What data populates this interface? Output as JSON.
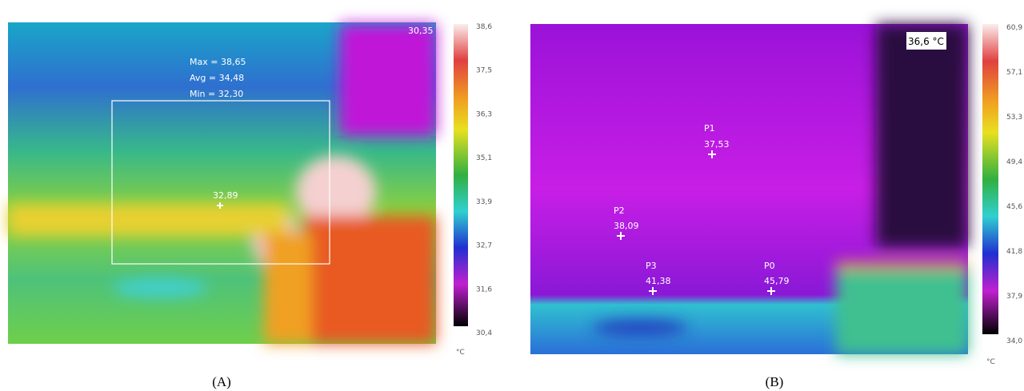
{
  "panel_a": {
    "corner_reading": "30,35",
    "stats": [
      "Max = 38,65",
      "Avg = 34,48",
      "Min = 32,30"
    ],
    "point_reading": "32,89",
    "scale_ticks": [
      "38,6",
      "37,5",
      "36,3",
      "35,1",
      "33,9",
      "32,7",
      "31,6",
      "30,4"
    ],
    "unit": "°C",
    "caption": "(A)"
  },
  "panel_b": {
    "spot_reading": "36,6 °C",
    "points": [
      {
        "label": "P1",
        "reading": "37,53"
      },
      {
        "label": "P2",
        "reading": "38,09"
      },
      {
        "label": "P3",
        "reading": "41,38"
      },
      {
        "label": "P0",
        "reading": "45,79"
      }
    ],
    "scale_ticks": [
      "60,9",
      "57,1",
      "53,3",
      "49,4",
      "45,6",
      "41,8",
      "37,9",
      "34,0"
    ],
    "unit": "°C",
    "caption": "(B)"
  }
}
